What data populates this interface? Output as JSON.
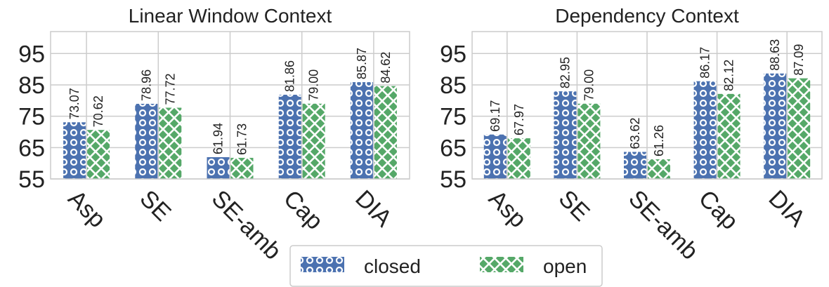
{
  "chart_data": [
    {
      "type": "bar",
      "title": "Linear Window Context",
      "categories": [
        "Asp",
        "SE",
        "SE-amb",
        "Cap",
        "DIA"
      ],
      "series": [
        {
          "name": "closed",
          "values": [
            73.07,
            78.96,
            61.94,
            81.86,
            85.87
          ]
        },
        {
          "name": "open",
          "values": [
            70.62,
            77.72,
            61.73,
            79.0,
            84.62
          ]
        }
      ],
      "value_labels": {
        "closed": [
          "73.07",
          "78.96",
          "61.94",
          "81.86",
          "85.87"
        ],
        "open": [
          "70.62",
          "77.72",
          "61.73",
          "79.00",
          "84.62"
        ]
      },
      "ylim": [
        55,
        102
      ],
      "yticks": [
        "55",
        "65",
        "75",
        "85",
        "95"
      ],
      "grid": true,
      "xlabel": "",
      "ylabel": ""
    },
    {
      "type": "bar",
      "title": "Dependency Context",
      "categories": [
        "Asp",
        "SE",
        "SE-amb",
        "Cap",
        "DIA"
      ],
      "series": [
        {
          "name": "closed",
          "values": [
            69.17,
            82.95,
            63.62,
            86.17,
            88.63
          ]
        },
        {
          "name": "open",
          "values": [
            67.97,
            79.0,
            61.26,
            82.12,
            87.09
          ]
        }
      ],
      "value_labels": {
        "closed": [
          "69.17",
          "82.95",
          "63.62",
          "86.17",
          "88.63"
        ],
        "open": [
          "67.97",
          "79.00",
          "61.26",
          "82.12",
          "87.09"
        ]
      },
      "ylim": [
        55,
        102
      ],
      "yticks": [
        "55",
        "65",
        "75",
        "85",
        "95"
      ],
      "grid": true,
      "xlabel": "",
      "ylabel": ""
    }
  ],
  "legend": {
    "placement": "bottom-center",
    "entries": [
      {
        "label": "closed",
        "color": "#4C72B0",
        "pattern": "circles-icon"
      },
      {
        "label": "open",
        "color": "#55A868",
        "pattern": "crosshatch-icon"
      }
    ]
  },
  "colors": {
    "closed": "#4C72B0",
    "open": "#55A868",
    "grid": "#cccccc",
    "frame": "#cccccc"
  }
}
